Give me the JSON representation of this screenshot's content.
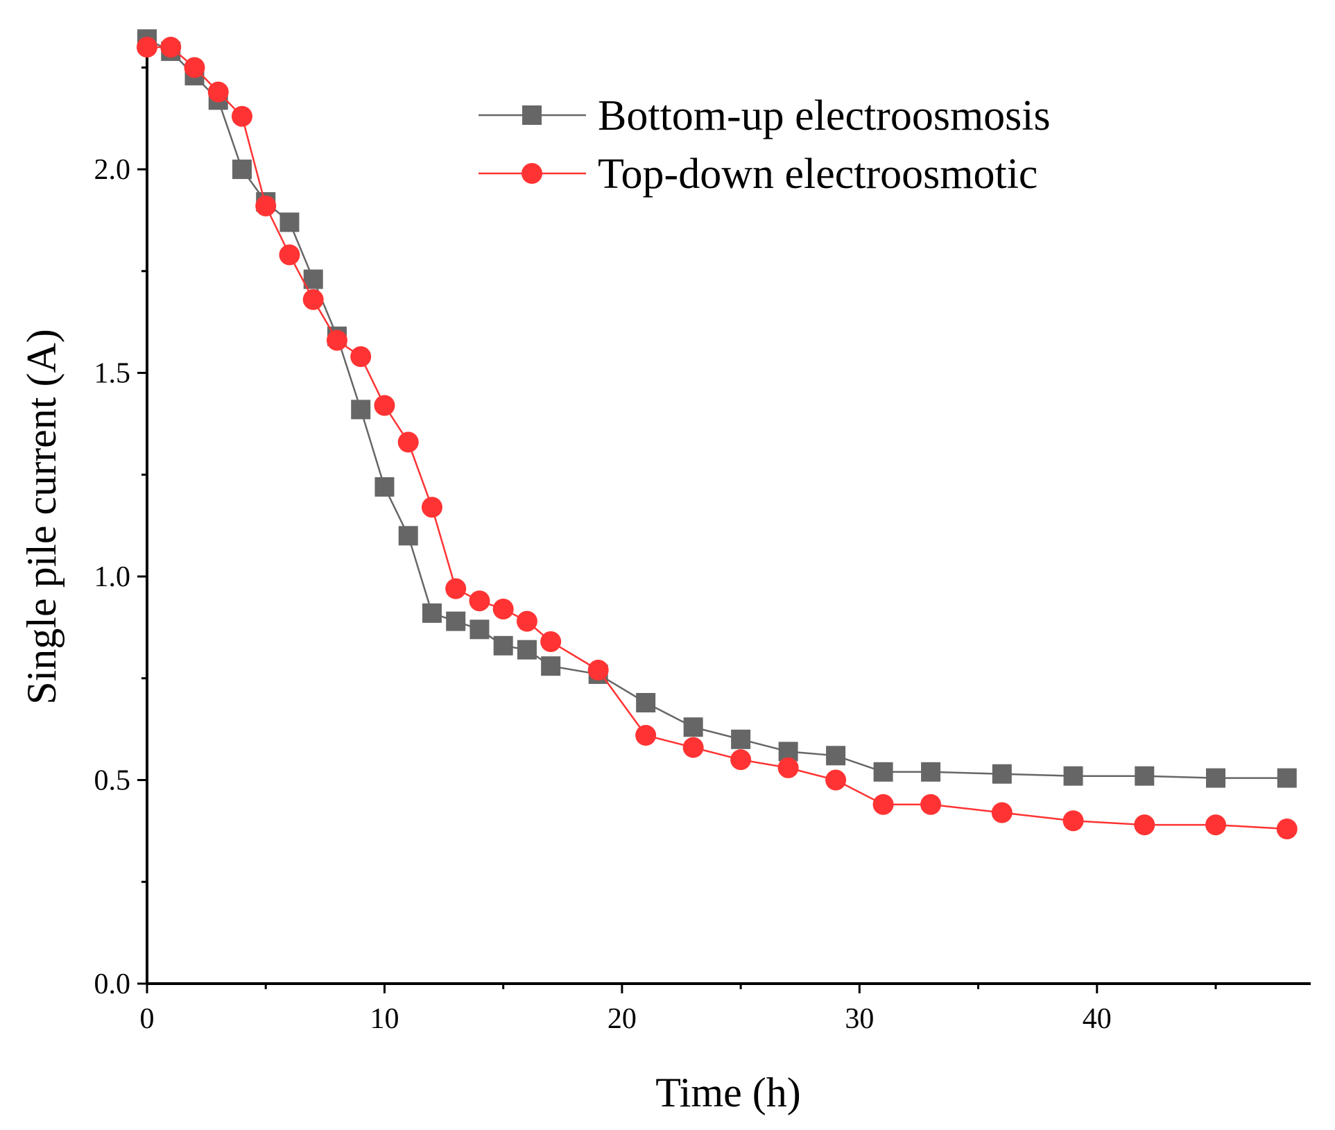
{
  "chart_data": {
    "type": "line",
    "title": "",
    "xlabel": "Time (h)",
    "ylabel": "Single pile current (A)",
    "xlim": [
      0,
      49
    ],
    "ylim": [
      0.0,
      2.3
    ],
    "xticks": [
      0,
      10,
      20,
      30,
      40
    ],
    "xtick_labels": [
      "0",
      "10",
      "20",
      "30",
      "40"
    ],
    "yticks": [
      0.0,
      0.5,
      1.0,
      1.5,
      2.0
    ],
    "ytick_labels": [
      "0.0",
      "0.5",
      "1.0",
      "1.5",
      "2.0"
    ],
    "grid": false,
    "legend_position": "top-right",
    "series": [
      {
        "name": "Bottom-up electroosmosis",
        "marker": "square",
        "color": "#666666",
        "x": [
          0,
          1,
          2,
          3,
          4,
          5,
          6,
          7,
          8,
          9,
          10,
          11,
          12,
          13,
          14,
          15,
          16,
          17,
          19,
          21,
          23,
          25,
          27,
          29,
          31,
          33,
          36,
          39,
          42,
          45,
          48
        ],
        "y": [
          2.32,
          2.29,
          2.23,
          2.17,
          2.0,
          1.92,
          1.87,
          1.73,
          1.59,
          1.41,
          1.22,
          1.1,
          0.91,
          0.89,
          0.87,
          0.83,
          0.82,
          0.78,
          0.76,
          0.69,
          0.63,
          0.6,
          0.57,
          0.56,
          0.52,
          0.52,
          0.515,
          0.51,
          0.51,
          0.505,
          0.505
        ]
      },
      {
        "name": "Top-down electroosmotic",
        "marker": "circle",
        "color": "#ff3333",
        "x": [
          0,
          1,
          2,
          3,
          4,
          5,
          6,
          7,
          8,
          9,
          10,
          11,
          12,
          13,
          14,
          15,
          16,
          17,
          19,
          21,
          23,
          25,
          27,
          29,
          31,
          33,
          36,
          39,
          42,
          45,
          48
        ],
        "y": [
          2.3,
          2.3,
          2.25,
          2.19,
          2.13,
          1.91,
          1.79,
          1.68,
          1.58,
          1.54,
          1.42,
          1.33,
          1.17,
          0.97,
          0.94,
          0.92,
          0.89,
          0.84,
          0.77,
          0.61,
          0.58,
          0.55,
          0.53,
          0.5,
          0.44,
          0.44,
          0.42,
          0.4,
          0.39,
          0.39,
          0.38
        ]
      }
    ]
  }
}
